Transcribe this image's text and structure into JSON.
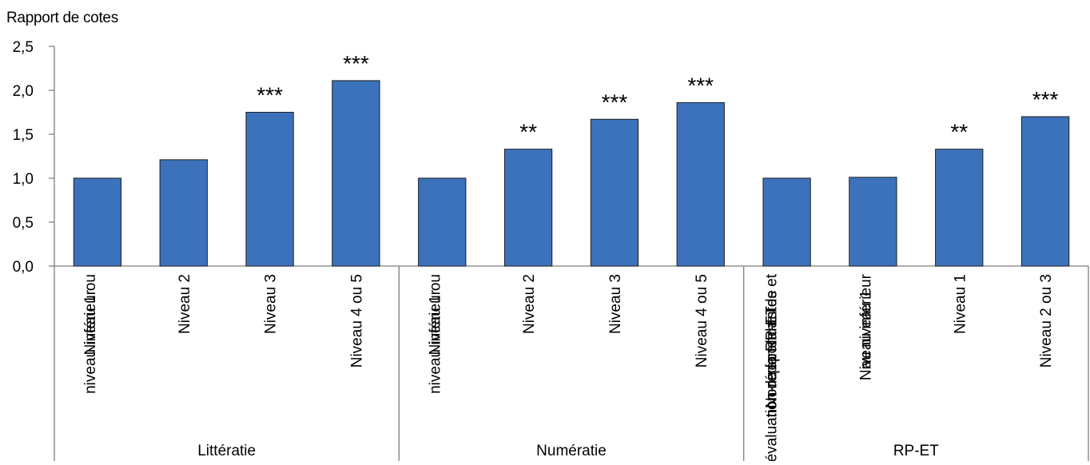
{
  "chart_data": {
    "type": "bar",
    "ylabel": "Rapport de cotes",
    "ylim": [
      0,
      2.5
    ],
    "yticks": [
      "0,0",
      "0,5",
      "1,0",
      "1,5",
      "2,0",
      "2,5"
    ],
    "grid": false,
    "colors": {
      "bar": "#3C72BC",
      "bar_edge": "#1f1f1f",
      "axis": "#7f7f7f"
    },
    "groups": [
      {
        "name": "Littératie",
        "categories": [
          {
            "lines": [
              "Niveau 1 ou",
              "niveau inférieur"
            ],
            "value": 1.0,
            "sig": ""
          },
          {
            "lines": [
              "Niveau 2"
            ],
            "value": 1.21,
            "sig": ""
          },
          {
            "lines": [
              "Niveau 3"
            ],
            "value": 1.75,
            "sig": "***"
          },
          {
            "lines": [
              "Niveau 4 ou 5"
            ],
            "value": 2.11,
            "sig": "***"
          }
        ]
      },
      {
        "name": "Numératie",
        "categories": [
          {
            "lines": [
              "Niveau 1 ou",
              "niveau inférieur"
            ],
            "value": 1.0,
            "sig": ""
          },
          {
            "lines": [
              "Niveau 2"
            ],
            "value": 1.33,
            "sig": "**"
          },
          {
            "lines": [
              "Niveau 3"
            ],
            "value": 1.67,
            "sig": "***"
          },
          {
            "lines": [
              "Niveau 4 ou 5"
            ],
            "value": 1.86,
            "sig": "***"
          }
        ]
      },
      {
        "name": "RP-ET",
        "categories": [
          {
            "lines": [
              "Non-répondantes et",
              "non-répondants de",
              "l'évaluation de la RP-ET"
            ],
            "value": 1.0,
            "sig": ""
          },
          {
            "lines": [
              "Niveau inférieur",
              "au niveau 1"
            ],
            "value": 1.01,
            "sig": ""
          },
          {
            "lines": [
              "Niveau 1"
            ],
            "value": 1.33,
            "sig": "**"
          },
          {
            "lines": [
              "Niveau 2 ou 3"
            ],
            "value": 1.7,
            "sig": "***"
          }
        ]
      }
    ]
  }
}
